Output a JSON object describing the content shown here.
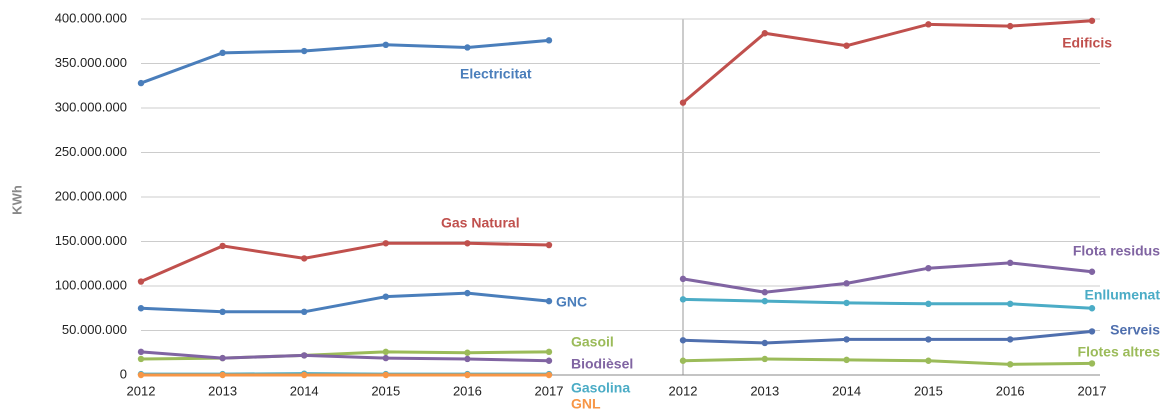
{
  "chart_data": [
    {
      "type": "line",
      "y_label": "KWh",
      "categories": [
        "2012",
        "2013",
        "2014",
        "2015",
        "2016",
        "2017"
      ],
      "ylim": [
        0,
        400000000
      ],
      "yticks": [
        {
          "value": 0,
          "label": "0"
        },
        {
          "value": 50000000,
          "label": "50.000.000"
        },
        {
          "value": 100000000,
          "label": "100.000.000"
        },
        {
          "value": 150000000,
          "label": "150.000.000"
        },
        {
          "value": 200000000,
          "label": "200.000.000"
        },
        {
          "value": 250000000,
          "label": "250.000.000"
        },
        {
          "value": 300000000,
          "label": "300.000.000"
        },
        {
          "value": 350000000,
          "label": "350.000.000"
        },
        {
          "value": 400000000,
          "label": "400.000.000"
        }
      ],
      "grid": true,
      "series": [
        {
          "name": "Electricitat",
          "color": "#4a7ebb",
          "values": [
            328000000,
            362000000,
            364000000,
            371000000,
            368000000,
            376000000
          ]
        },
        {
          "name": "Gas Natural",
          "color": "#c0504d",
          "values": [
            105000000,
            145000000,
            131000000,
            148000000,
            148000000,
            146000000
          ]
        },
        {
          "name": "GNC",
          "color": "#4a7ebb",
          "values": [
            75000000,
            71000000,
            71000000,
            88000000,
            92000000,
            83000000
          ]
        },
        {
          "name": "Gasoil",
          "color": "#9bbb59",
          "values": [
            18000000,
            19000000,
            22000000,
            26000000,
            25000000,
            26000000
          ]
        },
        {
          "name": "Biodièsel",
          "color": "#8064a2",
          "values": [
            26000000,
            19000000,
            22000000,
            19000000,
            18000000,
            16000000
          ]
        },
        {
          "name": "Gasolina",
          "color": "#4bacc6",
          "values": [
            1000000,
            1000000,
            1500000,
            1000000,
            1000000,
            1000000
          ]
        },
        {
          "name": "GNL",
          "color": "#f79646",
          "values": [
            0,
            0,
            0,
            0,
            0,
            0
          ]
        }
      ]
    },
    {
      "type": "line",
      "categories": [
        "2012",
        "2013",
        "2014",
        "2015",
        "2016",
        "2017"
      ],
      "ylim": [
        0,
        400000000
      ],
      "yticks": [
        0,
        50000000,
        100000000,
        150000000,
        200000000,
        250000000,
        300000000,
        350000000,
        400000000
      ],
      "grid": true,
      "series": [
        {
          "name": "Edificis",
          "color": "#c0504d",
          "values": [
            306000000,
            384000000,
            370000000,
            394000000,
            392000000,
            398000000
          ]
        },
        {
          "name": "Flota residus",
          "color": "#8064a2",
          "values": [
            108000000,
            93000000,
            103000000,
            120000000,
            126000000,
            116000000
          ]
        },
        {
          "name": "Enllumenat",
          "color": "#4bacc6",
          "values": [
            85000000,
            83000000,
            81000000,
            80000000,
            80000000,
            75000000
          ]
        },
        {
          "name": "Serveis",
          "color": "#4f6fae",
          "values": [
            39000000,
            36000000,
            40000000,
            40000000,
            40000000,
            49000000
          ]
        },
        {
          "name": "Flotes altres",
          "color": "#9bbb59",
          "values": [
            16000000,
            18000000,
            17000000,
            16000000,
            12000000,
            13000000
          ]
        }
      ]
    }
  ]
}
